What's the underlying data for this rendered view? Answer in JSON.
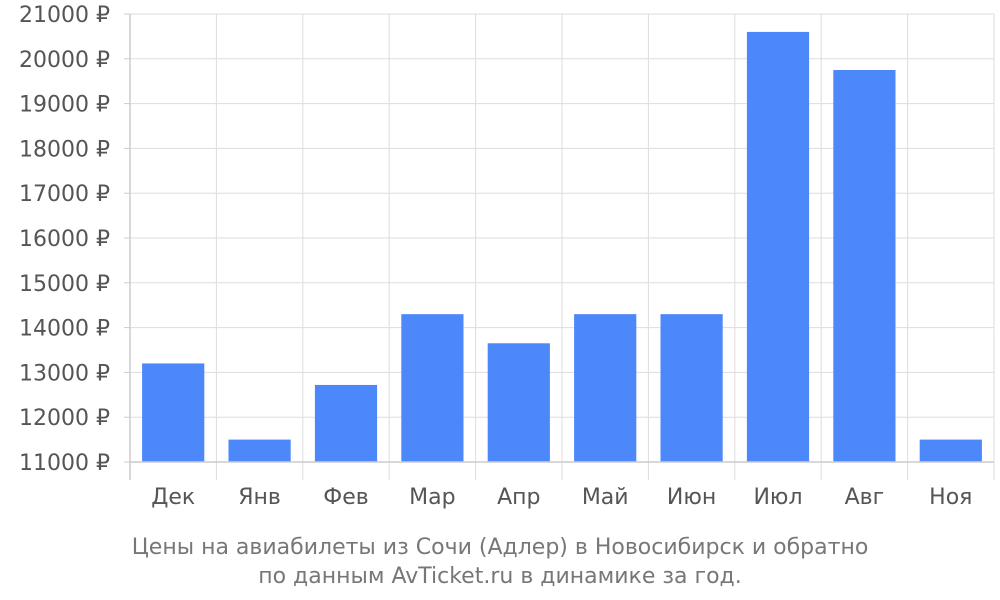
{
  "chart_data": {
    "type": "bar",
    "categories": [
      "Дек",
      "Янв",
      "Фев",
      "Мар",
      "Апр",
      "Май",
      "Июн",
      "Июл",
      "Авг",
      "Ноя"
    ],
    "values": [
      13200,
      11500,
      12720,
      14300,
      13650,
      14300,
      14300,
      20600,
      19750,
      11500
    ],
    "ylim": [
      11000,
      21000
    ],
    "yticks": [
      11000,
      12000,
      13000,
      14000,
      15000,
      16000,
      17000,
      18000,
      19000,
      20000,
      21000
    ],
    "ytick_suffix": " ₽",
    "bar_color": "#4d88fa",
    "grid_color": "#dddddd",
    "grid": true,
    "title_lines": [
      "Цены на авиабилеты из Сочи (Адлер) в Новосибирск и обратно",
      "по данным AvTicket.ru в динамике за год."
    ]
  }
}
